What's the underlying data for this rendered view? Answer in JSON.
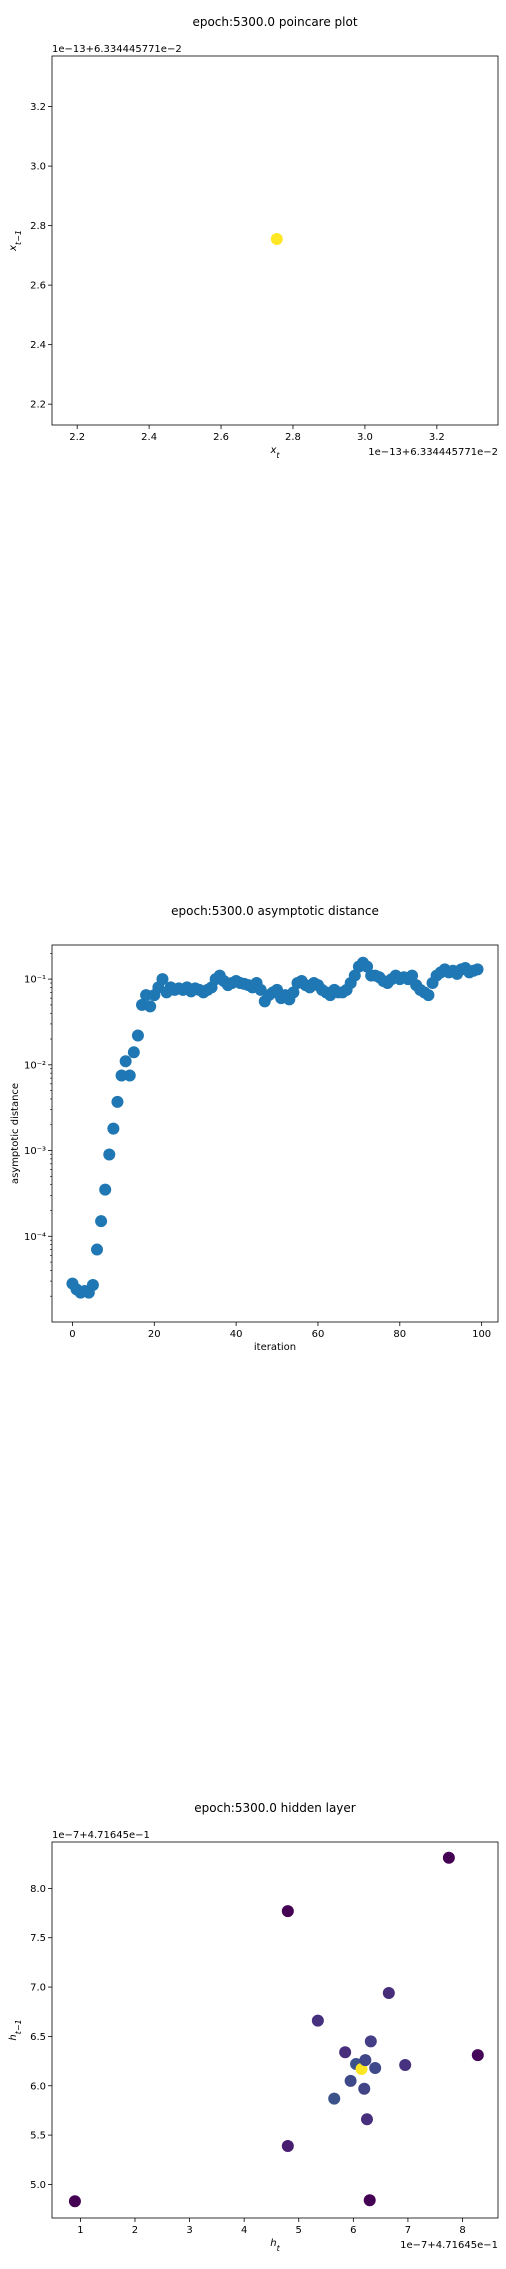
{
  "chart_data": [
    {
      "type": "scatter",
      "title": "epoch:5300.0 poincare plot",
      "xlabel": "x_t",
      "ylabel": "x_{t-1}",
      "x_offset_text": "1e−13+6.334445771e−2",
      "y_offset_text": "1e−13+6.334445771e−2",
      "xlim": [
        2.13,
        3.37
      ],
      "ylim": [
        2.13,
        3.37
      ],
      "x_ticks": [
        2.2,
        2.4,
        2.6,
        2.8,
        3.0,
        3.2
      ],
      "x_tick_labels": [
        "2.2",
        "2.4",
        "2.6",
        "2.8",
        "3.0",
        "3.2"
      ],
      "y_ticks": [
        2.2,
        2.4,
        2.6,
        2.8,
        3.0,
        3.2
      ],
      "y_tick_labels": [
        "2.2",
        "2.4",
        "2.6",
        "2.8",
        "3.0",
        "3.2"
      ],
      "points": [
        {
          "x": 2.755,
          "y": 2.755,
          "color": "#fde725"
        }
      ],
      "grid": false,
      "legend": "none"
    },
    {
      "type": "scatter",
      "title": "epoch:5300.0 asymptotic distance",
      "xlabel": "iteration",
      "ylabel": "asymptotic distance",
      "yscale": "log",
      "xlim": [
        -5,
        104
      ],
      "ylim": [
        1e-05,
        0.25
      ],
      "x_ticks": [
        0,
        20,
        40,
        60,
        80,
        100
      ],
      "x_tick_labels": [
        "0",
        "20",
        "40",
        "60",
        "80",
        "100"
      ],
      "y_ticks": [
        0.0001,
        0.001,
        0.01,
        0.1
      ],
      "y_tick_labels": [
        "10⁻⁴",
        "10⁻³",
        "10⁻²",
        "10⁻¹"
      ],
      "x": [
        0,
        1,
        2,
        3,
        4,
        5,
        6,
        7,
        8,
        9,
        10,
        11,
        12,
        13,
        14,
        15,
        16,
        17,
        18,
        19,
        20,
        21,
        22,
        23,
        24,
        25,
        26,
        27,
        28,
        29,
        30,
        31,
        32,
        33,
        34,
        35,
        36,
        37,
        38,
        39,
        40,
        41,
        42,
        43,
        44,
        45,
        46,
        47,
        48,
        49,
        50,
        51,
        52,
        53,
        54,
        55,
        56,
        57,
        58,
        59,
        60,
        61,
        62,
        63,
        64,
        65,
        66,
        67,
        68,
        69,
        70,
        71,
        72,
        73,
        74,
        75,
        76,
        77,
        78,
        79,
        80,
        81,
        82,
        83,
        84,
        85,
        86,
        87,
        88,
        89,
        90,
        91,
        92,
        93,
        94,
        95,
        96,
        97,
        98,
        99
      ],
      "y": [
        2.8e-05,
        2.4e-05,
        2.2e-05,
        2.3e-05,
        2.2e-05,
        2.7e-05,
        7e-05,
        0.00015,
        0.00035,
        0.0009,
        0.0018,
        0.0037,
        0.0075,
        0.011,
        0.0075,
        0.014,
        0.022,
        0.05,
        0.065,
        0.048,
        0.065,
        0.08,
        0.1,
        0.07,
        0.08,
        0.075,
        0.078,
        0.075,
        0.08,
        0.072,
        0.078,
        0.075,
        0.07,
        0.075,
        0.08,
        0.1,
        0.11,
        0.095,
        0.085,
        0.09,
        0.095,
        0.09,
        0.088,
        0.085,
        0.08,
        0.09,
        0.075,
        0.055,
        0.065,
        0.07,
        0.075,
        0.06,
        0.065,
        0.058,
        0.07,
        0.09,
        0.095,
        0.085,
        0.08,
        0.09,
        0.085,
        0.075,
        0.07,
        0.065,
        0.075,
        0.07,
        0.07,
        0.075,
        0.09,
        0.11,
        0.14,
        0.155,
        0.14,
        0.11,
        0.11,
        0.105,
        0.095,
        0.09,
        0.1,
        0.11,
        0.1,
        0.105,
        0.1,
        0.11,
        0.085,
        0.075,
        0.07,
        0.065,
        0.09,
        0.11,
        0.12,
        0.13,
        0.12,
        0.125,
        0.115,
        0.13,
        0.135,
        0.12,
        0.125,
        0.13
      ],
      "color": "#1f77b4",
      "grid": false,
      "legend": "none"
    },
    {
      "type": "scatter",
      "title": "epoch:5300.0 hidden layer",
      "xlabel": "h_t",
      "ylabel": "h_{t-1}",
      "x_offset_text": "1e−7+4.71645e−1",
      "y_offset_text": "1e−7+4.71645e−1",
      "xlim": [
        0.48,
        8.65
      ],
      "ylim": [
        4.66,
        8.47
      ],
      "x_ticks": [
        1,
        2,
        3,
        4,
        5,
        6,
        7,
        8
      ],
      "x_tick_labels": [
        "1",
        "2",
        "3",
        "4",
        "5",
        "6",
        "7",
        "8"
      ],
      "y_ticks": [
        5.0,
        5.5,
        6.0,
        6.5,
        7.0,
        7.5,
        8.0
      ],
      "y_tick_labels": [
        "5.0",
        "5.5",
        "6.0",
        "6.5",
        "7.0",
        "7.5",
        "8.0"
      ],
      "points": [
        {
          "x": 0.9,
          "y": 4.83,
          "color": "#440154"
        },
        {
          "x": 4.8,
          "y": 5.39,
          "color": "#481c6e"
        },
        {
          "x": 4.8,
          "y": 7.77,
          "color": "#440154"
        },
        {
          "x": 5.35,
          "y": 6.66,
          "color": "#46307e"
        },
        {
          "x": 5.65,
          "y": 5.87,
          "color": "#3b528b"
        },
        {
          "x": 5.85,
          "y": 6.34,
          "color": "#472d7b"
        },
        {
          "x": 5.95,
          "y": 6.05,
          "color": "#3e4989"
        },
        {
          "x": 6.05,
          "y": 6.22,
          "color": "#3b528b"
        },
        {
          "x": 6.15,
          "y": 6.17,
          "color": "#fde725"
        },
        {
          "x": 6.2,
          "y": 5.97,
          "color": "#414487"
        },
        {
          "x": 6.22,
          "y": 6.26,
          "color": "#404688"
        },
        {
          "x": 6.25,
          "y": 5.66,
          "color": "#472f7d"
        },
        {
          "x": 6.32,
          "y": 6.45,
          "color": "#433e85"
        },
        {
          "x": 6.4,
          "y": 6.18,
          "color": "#3e4a89"
        },
        {
          "x": 6.3,
          "y": 4.84,
          "color": "#440154"
        },
        {
          "x": 6.65,
          "y": 6.94,
          "color": "#472c7a"
        },
        {
          "x": 6.95,
          "y": 6.21,
          "color": "#46327e"
        },
        {
          "x": 7.75,
          "y": 8.31,
          "color": "#440154"
        },
        {
          "x": 8.28,
          "y": 6.31,
          "color": "#450559"
        }
      ],
      "grid": false,
      "legend": "none"
    }
  ]
}
